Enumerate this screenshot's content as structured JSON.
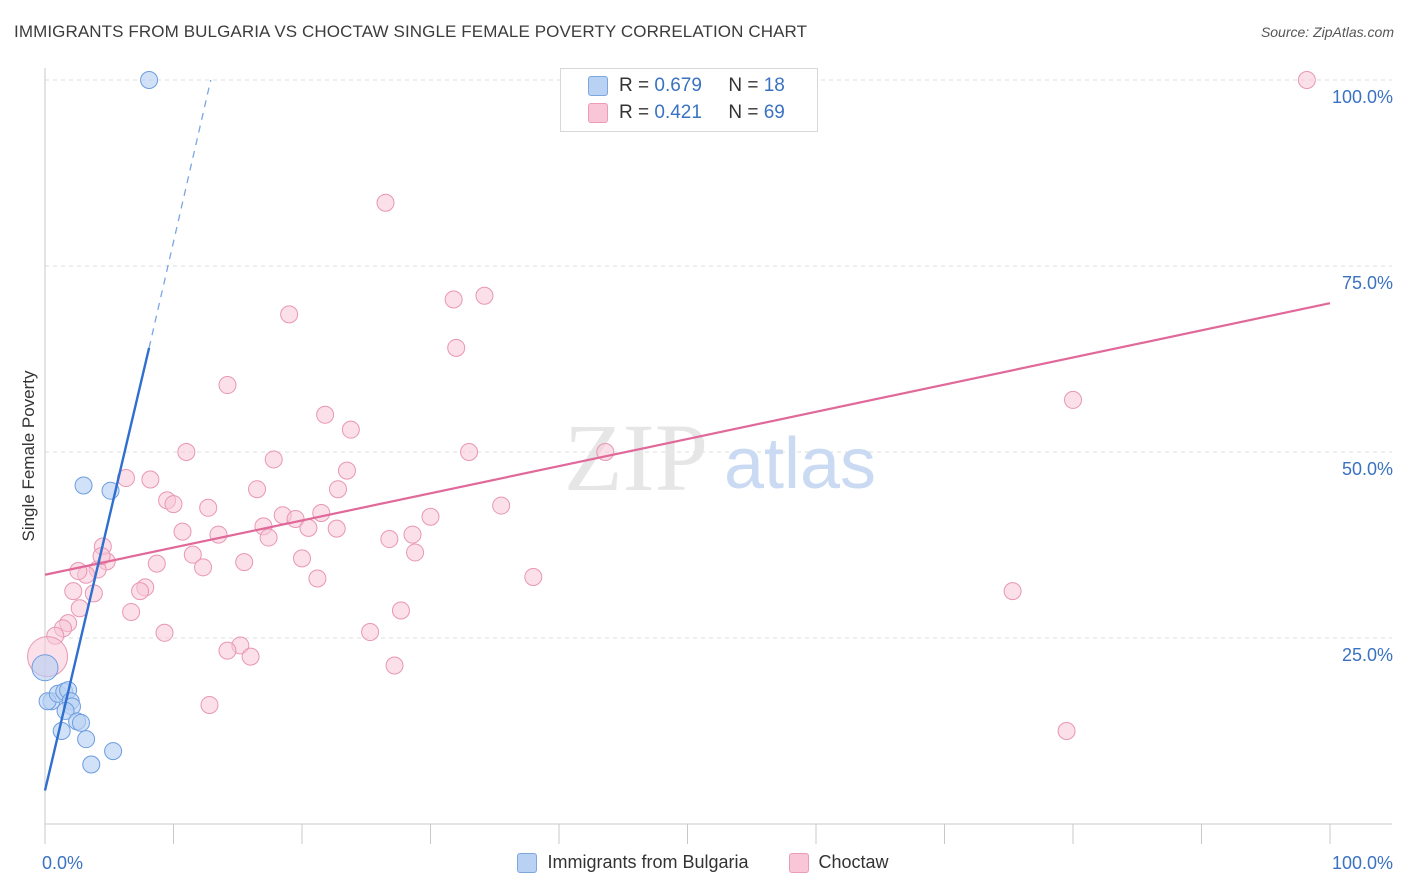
{
  "title": "IMMIGRANTS FROM BULGARIA VS CHOCTAW SINGLE FEMALE POVERTY CORRELATION CHART",
  "source": "Source: ZipAtlas.com",
  "colors": {
    "blue": "#2f6fcf",
    "blue_fill": "#b9d1f3",
    "pink": "#e0699a",
    "pink_fill": "#f8c6d7",
    "axis_text": "#3a72c2",
    "grid": "#dcdcdc"
  },
  "legend_box": {
    "rows": [
      {
        "r_label": "R =",
        "r_value": "0.679",
        "n_label": "N =",
        "n_value": "18"
      },
      {
        "r_label": "R =",
        "r_value": "0.421",
        "n_label": "N =",
        "n_value": "69"
      }
    ]
  },
  "watermark": {
    "zip": "ZIP",
    "atlas": "atlas"
  },
  "chart_data": {
    "type": "scatter",
    "title": "IMMIGRANTS FROM BULGARIA VS CHOCTAW SINGLE FEMALE POVERTY CORRELATION CHART",
    "xlabel": "",
    "ylabel": "Single Female Poverty",
    "xlim": [
      0,
      100
    ],
    "ylim": [
      0,
      100
    ],
    "x_tick_labels": [
      "0.0%",
      "100.0%"
    ],
    "y_ticks": [
      25,
      50,
      75,
      100
    ],
    "y_tick_labels": [
      "25.0%",
      "50.0%",
      "75.0%",
      "100.0%"
    ],
    "grid": true,
    "legend_position": "bottom",
    "series": [
      {
        "name": "Immigrants from Bulgaria",
        "color": "#2f6fcf",
        "r": 0.679,
        "n": 18,
        "trend": {
          "x": [
            0,
            8.1
          ],
          "y": [
            4.5,
            64
          ],
          "dash_to": [
            12.9,
            100
          ]
        },
        "points": [
          [
            8.1,
            100
          ],
          [
            3.0,
            45.5
          ],
          [
            5.1,
            44.8
          ],
          [
            0.0,
            21.0
          ],
          [
            0.5,
            16.5
          ],
          [
            0.2,
            16.5
          ],
          [
            1.0,
            17.5
          ],
          [
            1.5,
            17.8
          ],
          [
            1.8,
            18.0
          ],
          [
            2.0,
            16.5
          ],
          [
            2.1,
            15.8
          ],
          [
            1.6,
            15.2
          ],
          [
            2.5,
            13.8
          ],
          [
            2.8,
            13.6
          ],
          [
            1.3,
            12.5
          ],
          [
            3.2,
            11.4
          ],
          [
            5.3,
            9.8
          ],
          [
            3.6,
            8.0
          ]
        ]
      },
      {
        "name": "Choctaw",
        "color": "#e0699a",
        "r": 0.421,
        "n": 69,
        "trend": {
          "x": [
            0,
            100
          ],
          "y": [
            33.5,
            70
          ]
        },
        "points": [
          [
            98.2,
            100
          ],
          [
            26.5,
            83.5
          ],
          [
            34.2,
            71.0
          ],
          [
            31.8,
            70.5
          ],
          [
            19.0,
            68.5
          ],
          [
            32.0,
            64.0
          ],
          [
            14.2,
            59.0
          ],
          [
            80.0,
            57.0
          ],
          [
            21.8,
            55.0
          ],
          [
            23.8,
            53.0
          ],
          [
            11.0,
            50.0
          ],
          [
            17.8,
            49.0
          ],
          [
            33.0,
            50.0
          ],
          [
            43.6,
            50.0
          ],
          [
            23.5,
            47.5
          ],
          [
            6.3,
            46.5
          ],
          [
            8.2,
            46.3
          ],
          [
            16.5,
            45.0
          ],
          [
            22.8,
            45.0
          ],
          [
            9.5,
            43.5
          ],
          [
            10.0,
            43.0
          ],
          [
            35.5,
            42.8
          ],
          [
            12.7,
            42.5
          ],
          [
            21.5,
            41.8
          ],
          [
            18.5,
            41.5
          ],
          [
            19.5,
            41.0
          ],
          [
            30.0,
            41.3
          ],
          [
            17.0,
            40.0
          ],
          [
            20.5,
            39.8
          ],
          [
            22.7,
            39.7
          ],
          [
            10.7,
            39.3
          ],
          [
            13.5,
            38.9
          ],
          [
            17.4,
            38.5
          ],
          [
            26.8,
            38.3
          ],
          [
            28.6,
            38.9
          ],
          [
            4.5,
            37.3
          ],
          [
            28.8,
            36.5
          ],
          [
            11.5,
            36.2
          ],
          [
            20.0,
            35.7
          ],
          [
            15.5,
            35.2
          ],
          [
            4.8,
            35.3
          ],
          [
            8.7,
            35.0
          ],
          [
            12.3,
            34.5
          ],
          [
            4.1,
            34.2
          ],
          [
            3.2,
            33.5
          ],
          [
            2.6,
            34.0
          ],
          [
            21.2,
            33.0
          ],
          [
            38.0,
            33.2
          ],
          [
            75.3,
            31.3
          ],
          [
            7.8,
            31.8
          ],
          [
            7.4,
            31.3
          ],
          [
            2.2,
            31.3
          ],
          [
            3.8,
            31.0
          ],
          [
            2.7,
            29.0
          ],
          [
            6.7,
            28.5
          ],
          [
            27.7,
            28.7
          ],
          [
            1.8,
            27.0
          ],
          [
            1.4,
            26.3
          ],
          [
            9.3,
            25.7
          ],
          [
            25.3,
            25.8
          ],
          [
            0.8,
            25.3
          ],
          [
            15.2,
            24.0
          ],
          [
            14.2,
            23.3
          ],
          [
            16.0,
            22.5
          ],
          [
            27.2,
            21.3
          ],
          [
            0.2,
            22.5
          ],
          [
            12.8,
            16.0
          ],
          [
            79.5,
            12.5
          ],
          [
            4.4,
            36.0
          ]
        ]
      }
    ]
  }
}
